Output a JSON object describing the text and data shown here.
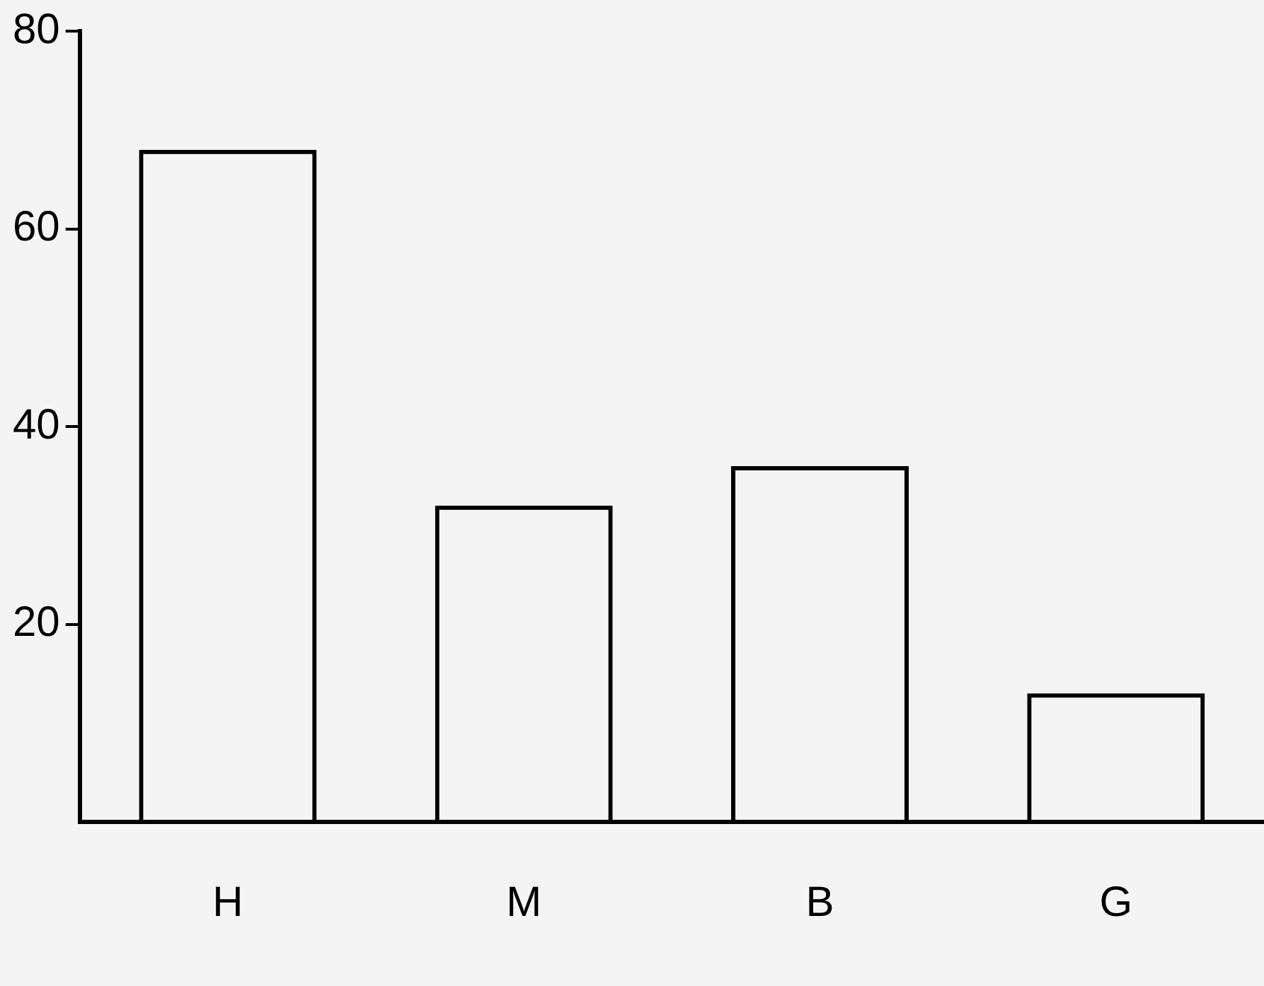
{
  "chart_data": {
    "type": "bar",
    "categories": [
      "H",
      "M",
      "B",
      "G"
    ],
    "values": [
      68,
      32,
      36,
      13
    ],
    "color": "#000000",
    "ylim": [
      0,
      80
    ],
    "yticks": [
      20,
      40,
      60,
      80
    ],
    "grid": false,
    "legend": false
  }
}
